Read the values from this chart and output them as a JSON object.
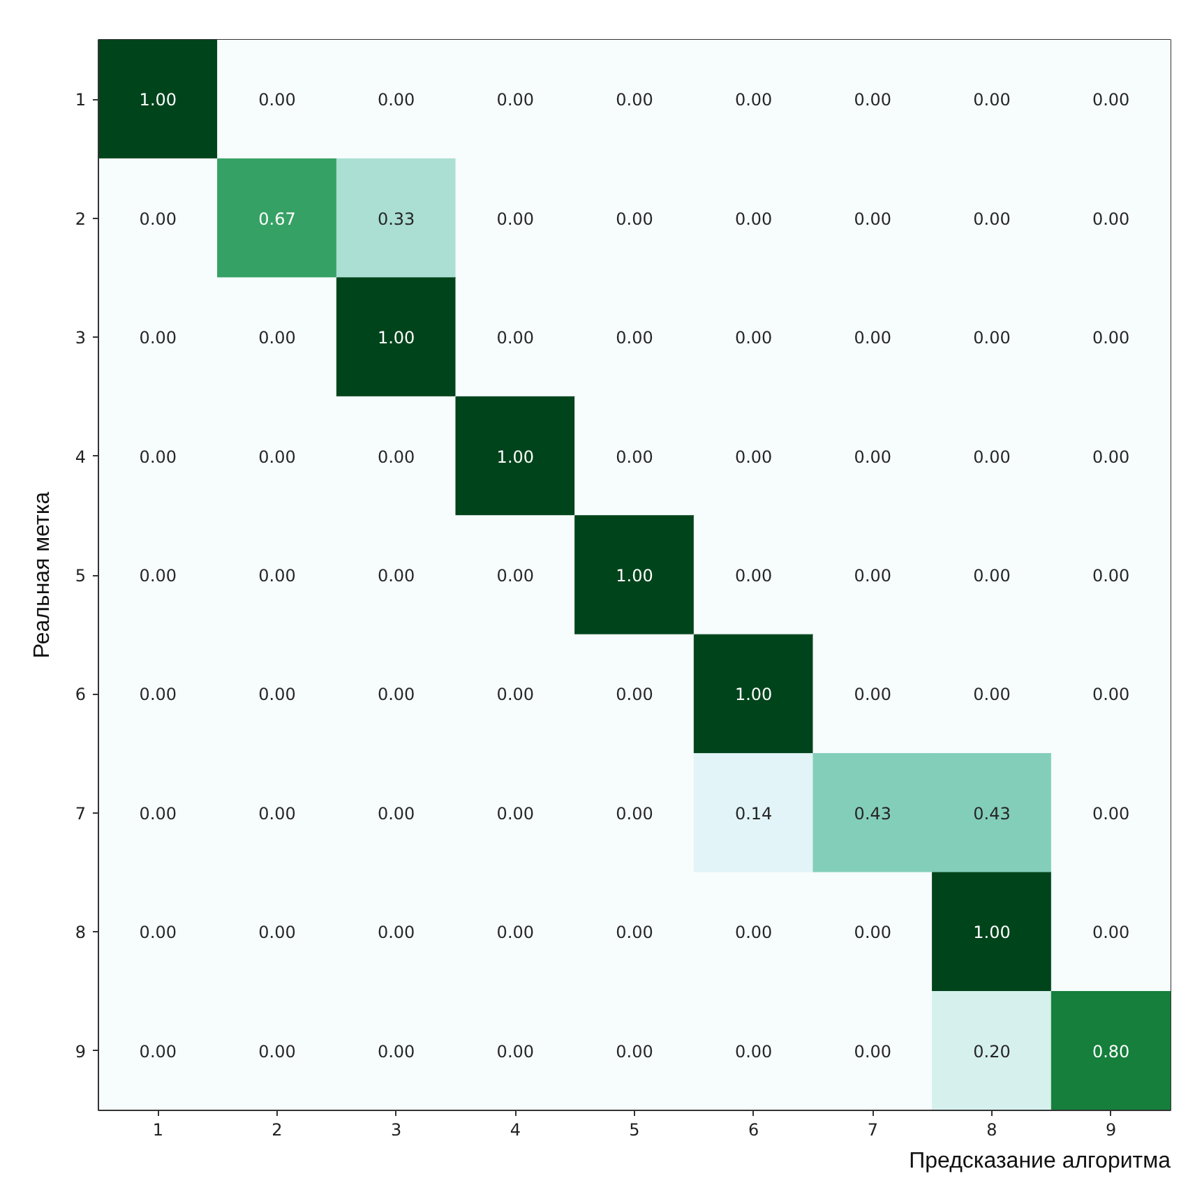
{
  "chart_data": {
    "type": "heatmap",
    "xlabel": "Предсказание алгоритма",
    "ylabel": "Реальная метка",
    "categories": [
      "1",
      "2",
      "3",
      "4",
      "5",
      "6",
      "7",
      "8",
      "9"
    ],
    "y_categories": [
      "1",
      "2",
      "3",
      "4",
      "5",
      "6",
      "7",
      "8",
      "9"
    ],
    "cells": [
      [
        1.0,
        0.0,
        0.0,
        0.0,
        0.0,
        0.0,
        0.0,
        0.0,
        0.0
      ],
      [
        0.0,
        0.67,
        0.33,
        0.0,
        0.0,
        0.0,
        0.0,
        0.0,
        0.0
      ],
      [
        0.0,
        0.0,
        1.0,
        0.0,
        0.0,
        0.0,
        0.0,
        0.0,
        0.0
      ],
      [
        0.0,
        0.0,
        0.0,
        1.0,
        0.0,
        0.0,
        0.0,
        0.0,
        0.0
      ],
      [
        0.0,
        0.0,
        0.0,
        0.0,
        1.0,
        0.0,
        0.0,
        0.0,
        0.0
      ],
      [
        0.0,
        0.0,
        0.0,
        0.0,
        0.0,
        1.0,
        0.0,
        0.0,
        0.0
      ],
      [
        0.0,
        0.0,
        0.0,
        0.0,
        0.0,
        0.14,
        0.43,
        0.43,
        0.0
      ],
      [
        0.0,
        0.0,
        0.0,
        0.0,
        0.0,
        0.0,
        0.0,
        1.0,
        0.0
      ],
      [
        0.0,
        0.0,
        0.0,
        0.0,
        0.0,
        0.0,
        0.0,
        0.2,
        0.8
      ]
    ],
    "cell_labels": [
      [
        "1.00",
        "0.00",
        "0.00",
        "0.00",
        "0.00",
        "0.00",
        "0.00",
        "0.00",
        "0.00"
      ],
      [
        "0.00",
        "0.67",
        "0.33",
        "0.00",
        "0.00",
        "0.00",
        "0.00",
        "0.00",
        "0.00"
      ],
      [
        "0.00",
        "0.00",
        "1.00",
        "0.00",
        "0.00",
        "0.00",
        "0.00",
        "0.00",
        "0.00"
      ],
      [
        "0.00",
        "0.00",
        "0.00",
        "1.00",
        "0.00",
        "0.00",
        "0.00",
        "0.00",
        "0.00"
      ],
      [
        "0.00",
        "0.00",
        "0.00",
        "0.00",
        "1.00",
        "0.00",
        "0.00",
        "0.00",
        "0.00"
      ],
      [
        "0.00",
        "0.00",
        "0.00",
        "0.00",
        "0.00",
        "1.00",
        "0.00",
        "0.00",
        "0.00"
      ],
      [
        "0.00",
        "0.00",
        "0.00",
        "0.00",
        "0.00",
        "0.14",
        "0.43",
        "0.43",
        "0.00"
      ],
      [
        "0.00",
        "0.00",
        "0.00",
        "0.00",
        "0.00",
        "0.00",
        "0.00",
        "1.00",
        "0.00"
      ],
      [
        "0.00",
        "0.00",
        "0.00",
        "0.00",
        "0.00",
        "0.00",
        "0.00",
        "0.20",
        "0.80"
      ]
    ]
  }
}
